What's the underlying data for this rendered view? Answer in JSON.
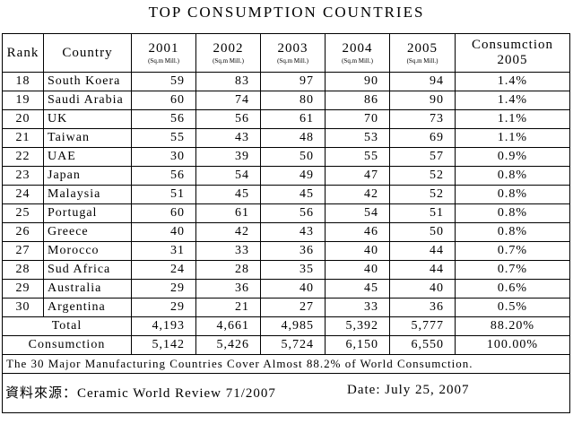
{
  "title": "TOP CONSUMPTION COUNTRIES",
  "header": {
    "rank": "Rank",
    "country": "Country",
    "years": [
      "2001",
      "2002",
      "2003",
      "2004",
      "2005"
    ],
    "units": [
      "(Sq.m Mill.)",
      "(Sq.m Mill.)",
      "(Sq.m Mill.)",
      "(Sq.m Mill.)",
      "(Sq.m Mill.)"
    ],
    "share_label": "Consumction",
    "share_year": "2005"
  },
  "table": {
    "rows": [
      [
        "18",
        "South Koera",
        "59",
        "83",
        "97",
        "90",
        "94",
        "1.4%"
      ],
      [
        "19",
        "Saudi Arabia",
        "60",
        "74",
        "80",
        "86",
        "90",
        "1.4%"
      ],
      [
        "20",
        "UK",
        "56",
        "56",
        "61",
        "70",
        "73",
        "1.1%"
      ],
      [
        "21",
        "Taiwan",
        "55",
        "43",
        "48",
        "53",
        "69",
        "1.1%"
      ],
      [
        "22",
        "UAE",
        "30",
        "39",
        "50",
        "55",
        "57",
        "0.9%"
      ],
      [
        "23",
        "Japan",
        "56",
        "54",
        "49",
        "47",
        "52",
        "0.8%"
      ],
      [
        "24",
        "Malaysia",
        "51",
        "45",
        "45",
        "42",
        "52",
        "0.8%"
      ],
      [
        "25",
        "Portugal",
        "60",
        "61",
        "56",
        "54",
        "51",
        "0.8%"
      ],
      [
        "26",
        "Greece",
        "40",
        "42",
        "43",
        "46",
        "50",
        "0.8%"
      ],
      [
        "27",
        "Morocco",
        "31",
        "33",
        "36",
        "40",
        "44",
        "0.7%"
      ],
      [
        "28",
        "Sud Africa",
        "24",
        "28",
        "35",
        "40",
        "44",
        "0.7%"
      ],
      [
        "29",
        "Australia",
        "29",
        "36",
        "40",
        "45",
        "40",
        "0.6%"
      ],
      [
        "30",
        "Argentina",
        "29",
        "21",
        "27",
        "33",
        "36",
        "0.5%"
      ]
    ],
    "summary": [
      [
        "Total",
        "4,193",
        "4,661",
        "4,985",
        "5,392",
        "5,777",
        "88.20%"
      ],
      [
        "Consumction",
        "5,142",
        "5,426",
        "5,724",
        "6,150",
        "6,550",
        "100.00%"
      ]
    ]
  },
  "footnote": "The 30 Major Manufacturing Countries Cover Almost 88.2% of World Consumction.",
  "source": "資料來源：Ceramic World Review 71/2007",
  "date": "Date: July 25, 2007"
}
